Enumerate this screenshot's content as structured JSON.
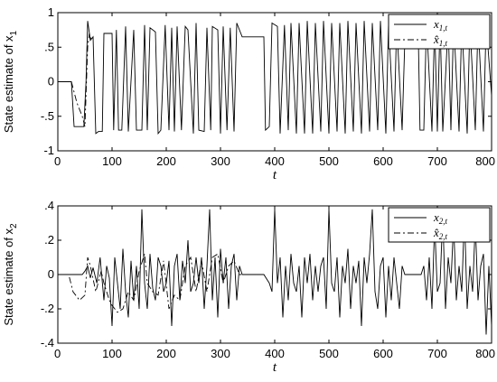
{
  "chart_data": [
    {
      "type": "line",
      "xlabel": "t",
      "ylabel": "State estimate of x",
      "ylabel_sub": "1",
      "xlim": [
        0,
        800
      ],
      "ylim": [
        -1,
        1
      ],
      "xticks": [
        0,
        100,
        200,
        300,
        400,
        500,
        600,
        700,
        800
      ],
      "yticks": [
        -1,
        -0.5,
        0,
        0.5,
        1
      ],
      "grid": false,
      "legend_position": "top-right",
      "series": [
        {
          "name": "x1,t",
          "legend_main": "x",
          "legend_sub": "1,t",
          "style": "solid",
          "color": "#000000",
          "x": [
            0,
            25,
            30,
            48,
            52,
            55,
            60,
            65,
            70,
            75,
            82,
            85,
            100,
            103,
            108,
            112,
            118,
            125,
            130,
            140,
            145,
            155,
            160,
            165,
            170,
            180,
            185,
            190,
            198,
            205,
            210,
            215,
            220,
            228,
            235,
            240,
            250,
            255,
            260,
            270,
            275,
            282,
            285,
            295,
            300,
            305,
            312,
            318,
            325,
            330,
            340,
            345,
            380,
            383,
            390,
            395,
            405,
            410,
            418,
            425,
            430,
            440,
            445,
            455,
            460,
            470,
            475,
            485,
            490,
            500,
            505,
            515,
            520,
            530,
            535,
            545,
            550,
            560,
            565,
            575,
            580,
            590,
            595,
            605,
            610,
            620,
            625,
            635,
            640,
            665,
            668,
            675,
            680,
            690,
            695,
            700,
            705,
            710,
            720,
            725,
            730,
            740,
            745,
            755,
            760,
            770,
            775,
            785,
            790,
            800
          ],
          "values": [
            0,
            0,
            -0.65,
            -0.65,
            0,
            0.88,
            0.6,
            0.65,
            -0.75,
            -0.72,
            -0.72,
            0.7,
            0.7,
            -0.7,
            0.75,
            -0.7,
            -0.7,
            0.8,
            -0.72,
            0.75,
            -0.7,
            -0.7,
            0.82,
            -0.7,
            0.78,
            0.72,
            -0.75,
            -0.7,
            0.82,
            -0.7,
            0.78,
            -0.72,
            0.8,
            -0.7,
            0.8,
            0.75,
            -0.75,
            0.85,
            -0.7,
            -0.72,
            0.78,
            -0.7,
            0.8,
            0.75,
            -0.75,
            0.8,
            -0.7,
            0.78,
            -0.72,
            0.85,
            0.65,
            0.65,
            0.65,
            -0.7,
            -0.65,
            0.85,
            0.8,
            -0.75,
            0.82,
            -0.7,
            0.85,
            -0.75,
            0.85,
            -0.75,
            0.88,
            -0.75,
            0.85,
            -0.72,
            0.88,
            -0.75,
            0.85,
            -0.72,
            0.85,
            -0.75,
            0.88,
            -0.72,
            0.85,
            -0.75,
            0.88,
            -0.72,
            0.85,
            -0.7,
            0.88,
            -0.75,
            0.85,
            -0.72,
            0.85,
            -0.7,
            0.6,
            0.6,
            -0.7,
            -0.7,
            0.88,
            -0.72,
            0.85,
            -0.72,
            0.88,
            -0.72,
            0.85,
            -0.7,
            0.88,
            -0.72,
            0.85,
            -0.75,
            0.85,
            -0.7,
            0.88,
            -0.72,
            0.85,
            -0.2
          ]
        },
        {
          "name": "x̂1,t",
          "legend_main": "x̂",
          "legend_sub": "1,t",
          "style": "dashdot",
          "color": "#000000",
          "x": [
            0,
            25,
            35,
            45,
            50,
            55,
            58,
            62
          ],
          "values": [
            0,
            0,
            -0.3,
            -0.5,
            -0.65,
            0.5,
            0.7,
            0.6
          ]
        }
      ]
    },
    {
      "type": "line",
      "xlabel": "t",
      "ylabel": "State estimate of x",
      "ylabel_sub": "2",
      "xlim": [
        0,
        800
      ],
      "ylim": [
        -0.4,
        0.4
      ],
      "xticks": [
        0,
        100,
        200,
        300,
        400,
        500,
        600,
        700,
        800
      ],
      "yticks": [
        -0.4,
        -0.2,
        0,
        0.2,
        0.4
      ],
      "grid": false,
      "legend_position": "top-right",
      "series": [
        {
          "name": "x2,t",
          "legend_main": "x",
          "legend_sub": "2,t",
          "style": "solid",
          "color": "#000000",
          "x": [
            0,
            45,
            50,
            55,
            60,
            65,
            72,
            78,
            85,
            90,
            95,
            100,
            105,
            110,
            115,
            120,
            125,
            130,
            135,
            140,
            145,
            150,
            155,
            160,
            165,
            170,
            175,
            180,
            185,
            190,
            195,
            200,
            205,
            210,
            215,
            220,
            225,
            230,
            235,
            240,
            245,
            250,
            255,
            260,
            265,
            270,
            275,
            280,
            285,
            290,
            295,
            300,
            305,
            310,
            315,
            320,
            325,
            330,
            335,
            340,
            345,
            380,
            390,
            395,
            400,
            405,
            410,
            415,
            420,
            425,
            430,
            435,
            440,
            445,
            450,
            455,
            460,
            465,
            470,
            475,
            480,
            485,
            490,
            495,
            500,
            505,
            510,
            515,
            520,
            525,
            530,
            535,
            540,
            545,
            550,
            555,
            560,
            565,
            570,
            575,
            580,
            585,
            590,
            595,
            600,
            605,
            610,
            615,
            620,
            625,
            630,
            635,
            640,
            670,
            675,
            680,
            685,
            690,
            695,
            700,
            705,
            710,
            715,
            720,
            725,
            730,
            735,
            740,
            745,
            750,
            755,
            760,
            765,
            770,
            775,
            780,
            785,
            790,
            795,
            800
          ],
          "values": [
            0,
            0,
            0.02,
            0.05,
            -0.02,
            0.04,
            -0.05,
            0.1,
            -0.15,
            0.05,
            -0.02,
            -0.3,
            0.1,
            -0.05,
            -0.2,
            0.15,
            -0.1,
            -0.25,
            0.08,
            -0.15,
            0.05,
            -0.2,
            0.38,
            -0.05,
            -0.2,
            0.12,
            -0.08,
            -0.15,
            0.1,
            0.05,
            -0.1,
            -0.05,
            0.08,
            -0.3,
            0.05,
            0.12,
            -0.15,
            0.08,
            -0.05,
            0.2,
            -0.1,
            -0.05,
            0.1,
            -0.05,
            0.1,
            -0.2,
            0.05,
            0.38,
            -0.15,
            0.1,
            -0.25,
            0.15,
            -0.05,
            0.1,
            -0.2,
            0.05,
            0.12,
            -0.15,
            0.05,
            0,
            0,
            0,
            -0.05,
            -0.1,
            0.38,
            -0.05,
            0.1,
            -0.25,
            0.05,
            -0.15,
            0.12,
            -0.05,
            -0.1,
            0.05,
            -0.25,
            0.1,
            -0.05,
            0.12,
            -0.15,
            0.05,
            -0.1,
            0.05,
            0.1,
            -0.2,
            0.38,
            -0.05,
            -0.1,
            0.1,
            -0.25,
            0.05,
            -0.05,
            0.15,
            -0.2,
            0.05,
            -0.05,
            0.08,
            -0.3,
            0.1,
            -0.05,
            0.12,
            0.38,
            -0.1,
            -0.2,
            0.05,
            0.1,
            -0.25,
            0.05,
            -0.15,
            0.1,
            -0.05,
            -0.2,
            0.05,
            0,
            0,
            0.05,
            -0.15,
            0.1,
            -0.2,
            0.3,
            -0.1,
            -0.05,
            0.35,
            -0.2,
            0.1,
            -0.05,
            0.3,
            -0.15,
            0.05,
            -0.1,
            0.35,
            -0.2,
            0.05,
            -0.1,
            0.3,
            -0.15,
            0.05,
            0.12,
            -0.35,
            0.05,
            -0.3
          ]
        },
        {
          "name": "x̂2,t",
          "legend_main": "x̂",
          "legend_sub": "2,t",
          "style": "dashdot",
          "color": "#000000",
          "x": [
            0,
            20,
            28,
            40,
            50,
            55,
            60,
            70,
            80,
            85,
            95,
            100,
            110,
            120,
            130,
            140,
            150,
            160,
            165,
            175,
            185,
            195,
            205,
            215,
            225,
            235,
            245,
            255,
            265,
            275,
            285,
            295,
            305,
            315,
            325,
            335,
            345
          ],
          "values": [
            0,
            0,
            -0.1,
            -0.15,
            -0.12,
            0.1,
            0.05,
            -0.1,
            0.02,
            -0.05,
            -0.15,
            -0.18,
            -0.22,
            -0.2,
            -0.1,
            -0.15,
            0.02,
            0.12,
            -0.05,
            -0.1,
            -0.12,
            0.08,
            -0.2,
            -0.12,
            -0.15,
            0.05,
            0.1,
            -0.1,
            0.08,
            -0.1,
            0.1,
            0.12,
            -0.05,
            0.05,
            0.08,
            0,
            0
          ]
        }
      ]
    }
  ]
}
